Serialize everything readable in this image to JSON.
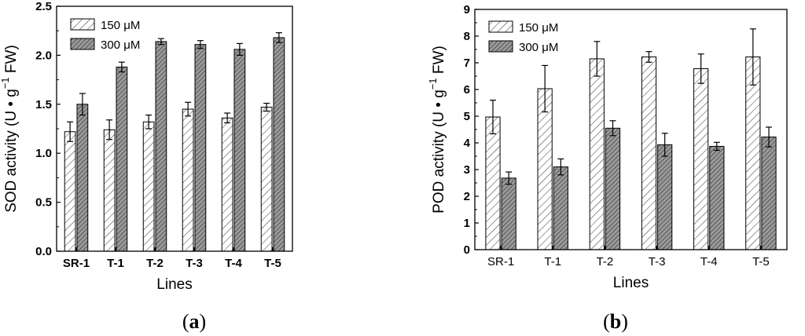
{
  "chart_data": [
    {
      "type": "bar",
      "panel_label": {
        "open": "(",
        "letter": "a",
        "close": ")"
      },
      "categories": [
        "SR-1",
        "T-1",
        "T-2",
        "T-3",
        "T-4",
        "T-5"
      ],
      "category_labels_bold": true,
      "series": [
        {
          "name": "150 μM",
          "values": [
            1.22,
            1.24,
            1.32,
            1.45,
            1.36,
            1.47
          ],
          "errors": [
            0.1,
            0.1,
            0.07,
            0.07,
            0.05,
            0.04
          ],
          "pattern": "hatch-light"
        },
        {
          "name": "300 μM",
          "values": [
            1.5,
            1.88,
            2.14,
            2.11,
            2.06,
            2.18
          ],
          "errors": [
            0.11,
            0.05,
            0.03,
            0.04,
            0.06,
            0.05
          ],
          "pattern": "hatch-dark"
        }
      ],
      "xlabel": "Lines",
      "ylabel": {
        "prefix": "SOD activity (U • g",
        "sup": "−1",
        "suffix": " FW)"
      },
      "ylim": [
        0,
        2.5
      ],
      "yticks": [
        "0.0",
        "0.5",
        "1.0",
        "1.5",
        "2.0",
        "2.5"
      ],
      "grid": false,
      "legend_position": "top-left"
    },
    {
      "type": "bar",
      "panel_label": {
        "open": "(",
        "letter": "b",
        "close": ")"
      },
      "categories": [
        "SR-1",
        "T-1",
        "T-2",
        "T-3",
        "T-4",
        "T-5"
      ],
      "category_labels_bold": false,
      "series": [
        {
          "name": "150 μM",
          "values": [
            4.97,
            6.03,
            7.15,
            7.22,
            6.78,
            7.22
          ],
          "errors": [
            0.63,
            0.87,
            0.65,
            0.2,
            0.55,
            1.05
          ],
          "pattern": "hatch-light"
        },
        {
          "name": "300 μM",
          "values": [
            2.68,
            3.1,
            4.55,
            3.93,
            3.87,
            4.22
          ],
          "errors": [
            0.23,
            0.3,
            0.28,
            0.43,
            0.15,
            0.37
          ],
          "pattern": "hatch-dark"
        }
      ],
      "xlabel": "Lines",
      "ylabel": {
        "prefix": "POD activity (U • g",
        "sup": "−1",
        "suffix": " FW)"
      },
      "ylim": [
        0,
        9
      ],
      "yticks": [
        "0",
        "1",
        "2",
        "3",
        "4",
        "5",
        "6",
        "7",
        "8",
        "9"
      ],
      "grid": false,
      "legend_position": "top-left"
    }
  ]
}
